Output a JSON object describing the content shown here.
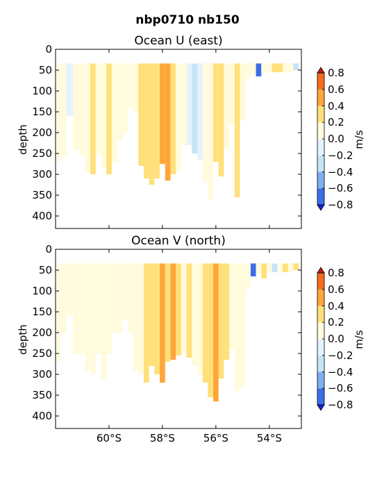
{
  "chart_data": {
    "suptitle": "nbp0710 nb150",
    "type": "heatmap",
    "colorbar_levels": [
      -0.8,
      -0.6,
      -0.4,
      -0.2,
      0.0,
      0.2,
      0.4,
      0.6,
      0.8
    ],
    "colorbar_colors": [
      "#1f1fe6",
      "#3b6fe8",
      "#7faef0",
      "#c6e4f8",
      "#e4f2fb",
      "#fffbdc",
      "#ffe07a",
      "#ffa63a",
      "#f56a1e",
      "#cc1a0a"
    ],
    "colormap_note": "blue-white-red diverging, extend both",
    "panels": [
      {
        "title": "Ocean U (east)",
        "ylabel": "depth",
        "colorbar_label": "m/s",
        "y_ticks": [
          "0",
          "50",
          "100",
          "150",
          "200",
          "250",
          "300",
          "350",
          "400"
        ],
        "y_range": [
          430,
          0
        ],
        "x_ticks": [
          "60°S",
          "58°S",
          "56°S",
          "54°S"
        ],
        "x_range_lat": [
          -62.0,
          -52.8
        ],
        "show_xticklabels": false,
        "columns": [
          {
            "lat": -61.9,
            "bot": 270,
            "bin": 0.1
          },
          {
            "lat": -61.7,
            "bot": 255,
            "bin": 0.0
          },
          {
            "lat": -61.5,
            "bot": 160,
            "bin": -0.1
          },
          {
            "lat": -61.2,
            "bot": 240,
            "bin": 0.1
          },
          {
            "lat": -61.0,
            "bot": 255,
            "bin": 0.0
          },
          {
            "lat": -60.8,
            "bot": 295,
            "bin": 0.1
          },
          {
            "lat": -60.6,
            "bot": 300,
            "bin": 0.3
          },
          {
            "lat": -60.4,
            "bot": 250,
            "bin": 0.1
          },
          {
            "lat": -60.2,
            "bot": 285,
            "bin": 0.1
          },
          {
            "lat": -60.0,
            "bot": 300,
            "bin": 0.3
          },
          {
            "lat": -59.8,
            "bot": 270,
            "bin": 0.1
          },
          {
            "lat": -59.6,
            "bot": 220,
            "bin": 0.0
          },
          {
            "lat": -59.4,
            "bot": 200,
            "bin": 0.1
          },
          {
            "lat": -59.2,
            "bot": 140,
            "bin": 0.0
          },
          {
            "lat": -59.0,
            "bot": 150,
            "bin": 0.1
          },
          {
            "lat": -58.8,
            "bot": 280,
            "bin": 0.3
          },
          {
            "lat": -58.6,
            "bot": 310,
            "bin": 0.3
          },
          {
            "lat": -58.4,
            "bot": 325,
            "bin": 0.3
          },
          {
            "lat": -58.2,
            "bot": 310,
            "bin": 0.3
          },
          {
            "lat": -58.0,
            "bot": 275,
            "bin": 0.5
          },
          {
            "lat": -57.8,
            "bot": 315,
            "bin": 0.5
          },
          {
            "lat": -57.6,
            "bot": 300,
            "bin": 0.3
          },
          {
            "lat": -57.4,
            "bot": 290,
            "bin": 0.1
          },
          {
            "lat": -57.2,
            "bot": 230,
            "bin": 0.0
          },
          {
            "lat": -57.0,
            "bot": 230,
            "bin": -0.1
          },
          {
            "lat": -56.8,
            "bot": 250,
            "bin": -0.3
          },
          {
            "lat": -56.6,
            "bot": 265,
            "bin": -0.1
          },
          {
            "lat": -56.4,
            "bot": 320,
            "bin": 0.0
          },
          {
            "lat": -56.2,
            "bot": 360,
            "bin": 0.1
          },
          {
            "lat": -56.0,
            "bot": 270,
            "bin": 0.3
          },
          {
            "lat": -55.8,
            "bot": 305,
            "bin": 0.3
          },
          {
            "lat": -55.6,
            "bot": 240,
            "bin": 0.1
          },
          {
            "lat": -55.4,
            "bot": 180,
            "bin": 0.1
          },
          {
            "lat": -55.2,
            "bot": 355,
            "bin": 0.3
          },
          {
            "lat": -55.0,
            "bot": 170,
            "bin": 0.1
          },
          {
            "lat": -54.8,
            "bot": 70,
            "bin": 0.0
          },
          {
            "lat": -54.6,
            "bot": 60,
            "bin": 0.1
          },
          {
            "lat": -54.4,
            "bot": 65,
            "bin": -0.7
          },
          {
            "lat": -54.2,
            "bot": 55,
            "bin": 0.0
          },
          {
            "lat": -54.0,
            "bot": 55,
            "bin": 0.1
          },
          {
            "lat": -53.8,
            "bot": 55,
            "bin": 0.3
          },
          {
            "lat": -53.6,
            "bot": 55,
            "bin": 0.3
          },
          {
            "lat": -53.4,
            "bot": 55,
            "bin": 0.1
          },
          {
            "lat": -53.2,
            "bot": 55,
            "bin": 0.0
          },
          {
            "lat": -53.0,
            "bot": 50,
            "bin": -0.3
          }
        ]
      },
      {
        "title": "Ocean V (north)",
        "ylabel": "depth",
        "colorbar_label": "m/s",
        "y_ticks": [
          "0",
          "50",
          "100",
          "150",
          "200",
          "250",
          "300",
          "350",
          "400"
        ],
        "y_range": [
          430,
          0
        ],
        "x_ticks": [
          "60°S",
          "58°S",
          "56°S",
          "54°S"
        ],
        "x_range_lat": [
          -62.0,
          -52.8
        ],
        "show_xticklabels": true,
        "columns": [
          {
            "lat": -61.9,
            "bot": 270,
            "bin": 0.1
          },
          {
            "lat": -61.7,
            "bot": 200,
            "bin": 0.1
          },
          {
            "lat": -61.5,
            "bot": 160,
            "bin": 0.0
          },
          {
            "lat": -61.2,
            "bot": 250,
            "bin": 0.0
          },
          {
            "lat": -61.0,
            "bot": 250,
            "bin": 0.1
          },
          {
            "lat": -60.8,
            "bot": 290,
            "bin": 0.1
          },
          {
            "lat": -60.6,
            "bot": 300,
            "bin": 0.0
          },
          {
            "lat": -60.4,
            "bot": 250,
            "bin": 0.0
          },
          {
            "lat": -60.2,
            "bot": 310,
            "bin": 0.0
          },
          {
            "lat": -60.0,
            "bot": 250,
            "bin": 0.0
          },
          {
            "lat": -59.8,
            "bot": 200,
            "bin": 0.0
          },
          {
            "lat": -59.6,
            "bot": 200,
            "bin": 0.0
          },
          {
            "lat": -59.4,
            "bot": 170,
            "bin": 0.0
          },
          {
            "lat": -59.2,
            "bot": 200,
            "bin": 0.0
          },
          {
            "lat": -59.0,
            "bot": 290,
            "bin": 0.0
          },
          {
            "lat": -58.8,
            "bot": 300,
            "bin": 0.1
          },
          {
            "lat": -58.6,
            "bot": 320,
            "bin": 0.3
          },
          {
            "lat": -58.4,
            "bot": 280,
            "bin": 0.3
          },
          {
            "lat": -58.2,
            "bot": 300,
            "bin": 0.3
          },
          {
            "lat": -58.0,
            "bot": 320,
            "bin": 0.5
          },
          {
            "lat": -57.8,
            "bot": 270,
            "bin": 0.3
          },
          {
            "lat": -57.6,
            "bot": 265,
            "bin": 0.5
          },
          {
            "lat": -57.4,
            "bot": 255,
            "bin": 0.3
          },
          {
            "lat": -57.2,
            "bot": 250,
            "bin": 0.1
          },
          {
            "lat": -57.0,
            "bot": 260,
            "bin": 0.3
          },
          {
            "lat": -56.8,
            "bot": 280,
            "bin": 0.1
          },
          {
            "lat": -56.6,
            "bot": 300,
            "bin": 0.0
          },
          {
            "lat": -56.4,
            "bot": 320,
            "bin": 0.3
          },
          {
            "lat": -56.2,
            "bot": 355,
            "bin": 0.3
          },
          {
            "lat": -56.0,
            "bot": 365,
            "bin": 0.5
          },
          {
            "lat": -55.8,
            "bot": 310,
            "bin": 0.3
          },
          {
            "lat": -55.6,
            "bot": 265,
            "bin": 0.3
          },
          {
            "lat": -55.4,
            "bot": 240,
            "bin": 0.1
          },
          {
            "lat": -55.2,
            "bot": 340,
            "bin": 0.1
          },
          {
            "lat": -55.0,
            "bot": 330,
            "bin": 0.0
          },
          {
            "lat": -54.8,
            "bot": 95,
            "bin": 0.0
          },
          {
            "lat": -54.6,
            "bot": 65,
            "bin": -0.7
          },
          {
            "lat": -54.4,
            "bot": 60,
            "bin": 0.0
          },
          {
            "lat": -54.2,
            "bot": 70,
            "bin": 0.3
          },
          {
            "lat": -54.0,
            "bot": 55,
            "bin": 0.1
          },
          {
            "lat": -53.8,
            "bot": 55,
            "bin": -0.3
          },
          {
            "lat": -53.6,
            "bot": 55,
            "bin": 0.0
          },
          {
            "lat": -53.4,
            "bot": 55,
            "bin": 0.3
          },
          {
            "lat": -53.2,
            "bot": 55,
            "bin": 0.1
          },
          {
            "lat": -53.0,
            "bot": 50,
            "bin": 0.3
          }
        ]
      }
    ]
  }
}
